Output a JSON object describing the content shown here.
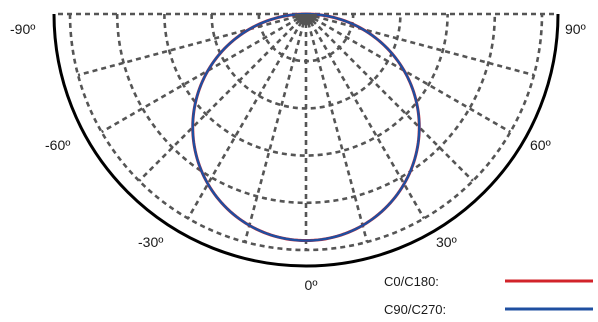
{
  "chart_data": {
    "type": "polar",
    "subtype": "photometric-lower-half",
    "angle_range": [
      -90,
      90
    ],
    "angle_grid_step": 15,
    "radial_rings": 5,
    "grid": true,
    "grid_style": "dashed",
    "angle_labels": [
      {
        "angle": -90,
        "text": "-90º"
      },
      {
        "angle": -60,
        "text": "-60º"
      },
      {
        "angle": -30,
        "text": "-30º"
      },
      {
        "angle": 0,
        "text": "0º"
      },
      {
        "angle": 30,
        "text": "30º"
      },
      {
        "angle": 60,
        "text": "60º"
      },
      {
        "angle": 90,
        "text": "90º"
      }
    ],
    "curve_shape": "cosine",
    "series": [
      {
        "name": "C0/C180:",
        "color": "#d2232a",
        "peak": 0.96
      },
      {
        "name": "C90/C270:",
        "color": "#1f4fa0",
        "peak": 0.96
      }
    ],
    "legend_position": "bottom-right"
  },
  "colors": {
    "grid": "#555555",
    "outline": "#000000",
    "origin_cap": "#555555"
  }
}
